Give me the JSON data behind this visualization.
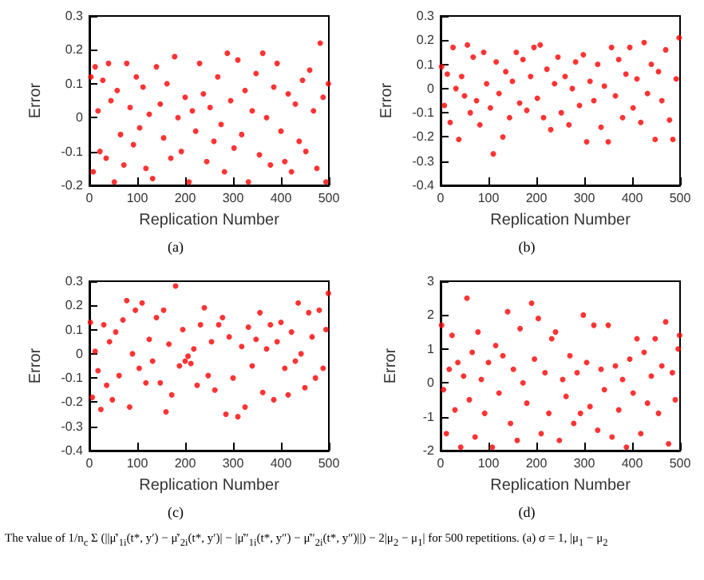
{
  "chart_data": [
    {
      "type": "scatter",
      "title": "(a)",
      "xlabel": "Replication Number",
      "ylabel": "Error",
      "color": "#ff0000",
      "marker": "circle",
      "xlim": [
        0,
        500
      ],
      "xticks": [
        0,
        100,
        200,
        300,
        400,
        500
      ],
      "ylim": [
        -0.2,
        0.3
      ],
      "yticks": [
        -0.2,
        -0.1,
        0,
        0.1,
        0.2,
        0.3
      ],
      "x": [
        3,
        8,
        12,
        18,
        22,
        28,
        35,
        40,
        45,
        52,
        58,
        65,
        72,
        78,
        85,
        92,
        98,
        105,
        112,
        118,
        125,
        132,
        140,
        148,
        155,
        162,
        170,
        178,
        185,
        192,
        200,
        208,
        215,
        222,
        230,
        238,
        245,
        252,
        260,
        268,
        275,
        282,
        288,
        295,
        302,
        310,
        318,
        325,
        332,
        340,
        348,
        355,
        362,
        370,
        378,
        385,
        392,
        400,
        408,
        415,
        422,
        430,
        438,
        445,
        452,
        460,
        468,
        475,
        482,
        488,
        494,
        499
      ],
      "values": [
        0.12,
        -0.16,
        0.15,
        0.02,
        -0.1,
        0.11,
        -0.12,
        0.16,
        0.05,
        -0.19,
        0.08,
        -0.05,
        -0.14,
        0.16,
        0.03,
        -0.08,
        0.12,
        -0.03,
        0.09,
        -0.15,
        0.01,
        -0.18,
        0.15,
        0.04,
        -0.06,
        0.1,
        -0.12,
        0.18,
        0,
        -0.1,
        0.06,
        -0.19,
        0.02,
        -0.04,
        0.16,
        0.07,
        -0.13,
        0.03,
        -0.07,
        0.12,
        -0.02,
        -0.16,
        0.19,
        0.05,
        -0.09,
        0.17,
        -0.05,
        0.08,
        -0.19,
        0.02,
        0.13,
        -0.11,
        0.19,
        0,
        -0.14,
        0.09,
        0.16,
        -0.04,
        -0.13,
        0.07,
        -0.16,
        0.04,
        -0.07,
        0.11,
        -0.1,
        0.14,
        0.02,
        -0.15,
        0.22,
        0.06,
        -0.19,
        0.1
      ],
      "annotations": [
        "The value of 1/n$_{c}$ Σ (||μ̇′$_{1i}$(t*, y′) − μ̇′$_{2i}$(t*, y′)| − |μ̇″$_{1i}$(t*, y″) − μ̇″$_{2i}$(t*, y″)||) − 2|μ$_{2}$ − μ$_{1}$| for 500 repetitions. (a) σ = 1, |μ$_{1}$ − μ$_{2}$"
      ]
    },
    {
      "type": "scatter",
      "title": "(b)",
      "xlabel": "Replication Number",
      "ylabel": "Error",
      "color": "#ff0000",
      "marker": "circle",
      "xlim": [
        0,
        500
      ],
      "xticks": [
        0,
        100,
        200,
        300,
        400,
        500
      ],
      "ylim": [
        -0.4,
        0.3
      ],
      "yticks": [
        -0.4,
        -0.3,
        -0.2,
        -0.1,
        0,
        0.1,
        0.2,
        0.3
      ],
      "x": [
        2,
        8,
        14,
        20,
        26,
        32,
        38,
        44,
        50,
        56,
        62,
        68,
        75,
        82,
        90,
        96,
        104,
        110,
        116,
        122,
        130,
        136,
        144,
        150,
        158,
        165,
        172,
        180,
        188,
        195,
        202,
        208,
        215,
        222,
        230,
        238,
        245,
        252,
        260,
        268,
        275,
        282,
        290,
        298,
        305,
        312,
        320,
        328,
        335,
        342,
        350,
        357,
        365,
        372,
        380,
        387,
        395,
        402,
        410,
        418,
        425,
        432,
        440,
        448,
        455,
        462,
        470,
        478,
        485,
        492,
        498
      ],
      "values": [
        0.09,
        -0.07,
        0.06,
        -0.14,
        0.17,
        0,
        -0.21,
        0.05,
        -0.03,
        0.18,
        -0.1,
        0.13,
        -0.05,
        -0.15,
        0.15,
        0.02,
        -0.08,
        -0.27,
        0.11,
        -0.02,
        -0.2,
        0.07,
        -0.12,
        0.03,
        0.15,
        -0.06,
        0.12,
        -0.09,
        0.05,
        0.17,
        -0.04,
        0.18,
        -0.12,
        0.08,
        -0.17,
        0.02,
        0.13,
        -0.1,
        0.05,
        -0.15,
        0,
        0.11,
        -0.07,
        0.14,
        -0.22,
        0.03,
        -0.05,
        0.1,
        -0.16,
        0.01,
        -0.22,
        0.17,
        -0.03,
        0.12,
        -0.12,
        0.06,
        0.17,
        -0.08,
        0.04,
        -0.14,
        0.19,
        -0.02,
        0.1,
        -0.21,
        0.07,
        -0.05,
        0.16,
        -0.13,
        -0.21,
        0.04,
        0.21
      ]
    },
    {
      "type": "scatter",
      "title": "(c)",
      "xlabel": "Replication Number",
      "ylabel": "Error",
      "color": "#ff0000",
      "marker": "circle",
      "xlim": [
        0,
        500
      ],
      "xticks": [
        0,
        100,
        200,
        300,
        400,
        500
      ],
      "ylim": [
        -0.4,
        0.3
      ],
      "yticks": [
        -0.4,
        -0.3,
        -0.2,
        -0.1,
        0,
        0.1,
        0.2,
        0.3
      ],
      "x": [
        2,
        6,
        12,
        18,
        24,
        30,
        36,
        42,
        48,
        55,
        62,
        70,
        78,
        84,
        90,
        96,
        104,
        110,
        118,
        125,
        132,
        140,
        148,
        155,
        160,
        166,
        172,
        180,
        188,
        195,
        200,
        206,
        212,
        218,
        225,
        232,
        240,
        248,
        255,
        262,
        270,
        278,
        285,
        292,
        300,
        310,
        318,
        325,
        332,
        340,
        348,
        356,
        362,
        370,
        378,
        385,
        392,
        400,
        408,
        415,
        422,
        430,
        436,
        442,
        450,
        458,
        465,
        472,
        480,
        488,
        494,
        499
      ],
      "values": [
        0.13,
        -0.18,
        0.01,
        -0.07,
        -0.23,
        0.12,
        -0.13,
        0.05,
        -0.19,
        0.09,
        -0.09,
        0.14,
        0.22,
        -0.22,
        0,
        0.18,
        -0.06,
        0.21,
        -0.12,
        0.06,
        -0.03,
        0.15,
        -0.12,
        0.18,
        -0.24,
        0.04,
        -0.17,
        0.28,
        -0.05,
        0.1,
        -0.03,
        -0.01,
        -0.04,
        0.02,
        -0.13,
        0.12,
        0.19,
        -0.09,
        0.05,
        -0.15,
        0.12,
        0.15,
        -0.25,
        0.07,
        -0.1,
        -0.26,
        0.03,
        -0.22,
        0.11,
        -0.05,
        0.06,
        0.17,
        -0.16,
        0.02,
        0.12,
        -0.19,
        0.05,
        0.13,
        -0.06,
        -0.17,
        0.09,
        -0.03,
        0.21,
        0,
        -0.14,
        0.17,
        0.07,
        -0.1,
        0.18,
        -0.06,
        0.1,
        0.25
      ]
    },
    {
      "type": "scatter",
      "title": "(d)",
      "xlabel": "Replication Number",
      "ylabel": "Error",
      "color": "#ff0000",
      "marker": "circle",
      "xlim": [
        0,
        500
      ],
      "xticks": [
        0,
        100,
        200,
        300,
        400,
        500
      ],
      "ylim": [
        -2,
        3
      ],
      "yticks": [
        -2,
        -1,
        0,
        1,
        2,
        3
      ],
      "x": [
        2,
        6,
        12,
        18,
        24,
        30,
        36,
        42,
        48,
        55,
        60,
        66,
        72,
        78,
        85,
        92,
        100,
        108,
        115,
        122,
        130,
        140,
        146,
        152,
        160,
        166,
        172,
        180,
        190,
        196,
        204,
        210,
        218,
        226,
        232,
        240,
        248,
        255,
        262,
        270,
        278,
        285,
        292,
        298,
        305,
        312,
        320,
        328,
        335,
        342,
        350,
        358,
        365,
        372,
        380,
        388,
        395,
        402,
        410,
        418,
        425,
        432,
        440,
        448,
        455,
        462,
        470,
        476,
        484,
        490,
        496,
        499
      ],
      "values": [
        1.7,
        -0.2,
        -1.5,
        0.4,
        1.4,
        -0.8,
        0.6,
        -1.9,
        0.2,
        2.5,
        -0.5,
        0.9,
        -1.6,
        1.5,
        0.1,
        -0.9,
        0.6,
        -1.9,
        1.1,
        -0.3,
        0.8,
        2.1,
        -1.2,
        0.4,
        -1.7,
        1.6,
        0,
        -0.6,
        2.35,
        0.7,
        1.9,
        -1.5,
        0.3,
        -0.9,
        1.3,
        1.5,
        -1.7,
        0.1,
        -0.4,
        0.8,
        -1.2,
        0.3,
        -0.9,
        2,
        0.6,
        -0.7,
        1.7,
        -1.4,
        0.4,
        -0.2,
        1.7,
        -1.6,
        0.5,
        -0.8,
        0.1,
        -1.9,
        0.7,
        -0.3,
        1.3,
        -1.5,
        0.9,
        -0.6,
        0.2,
        1.3,
        -0.9,
        0.5,
        1.8,
        -1.8,
        0.3,
        -0.5,
        1,
        1.4
      ]
    }
  ]
}
